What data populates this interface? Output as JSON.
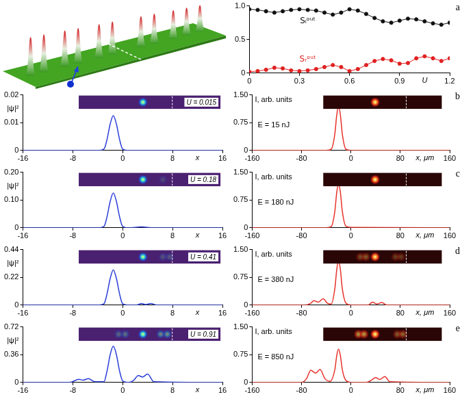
{
  "chart_data": [
    {
      "type": "line",
      "title": "a",
      "x_label": "U",
      "x": [
        0,
        0.05,
        0.1,
        0.15,
        0.2,
        0.25,
        0.3,
        0.35,
        0.4,
        0.45,
        0.5,
        0.55,
        0.6,
        0.65,
        0.7,
        0.75,
        0.8,
        0.85,
        0.9,
        0.95,
        1,
        1.05,
        1.1,
        1.15,
        1.2
      ],
      "series": [
        {
          "name": "Sₗᵒᵘᵗ",
          "color": "#111111",
          "marker": "circle",
          "values": [
            0.95,
            0.94,
            0.92,
            0.9,
            0.92,
            0.94,
            0.95,
            0.94,
            0.93,
            0.9,
            0.87,
            0.9,
            0.95,
            0.93,
            0.88,
            0.82,
            0.77,
            0.75,
            0.78,
            0.81,
            0.8,
            0.77,
            0.74,
            0.72,
            0.75
          ]
        },
        {
          "name": "Sᵣᵒᵘᵗ",
          "color": "#e02020",
          "marker": "circle",
          "values": [
            0.02,
            0.03,
            0.05,
            0.08,
            0.07,
            0.04,
            0.03,
            0.04,
            0.06,
            0.09,
            0.12,
            0.09,
            0.03,
            0.06,
            0.12,
            0.18,
            0.21,
            0.19,
            0.14,
            0.15,
            0.22,
            0.25,
            0.22,
            0.18,
            0.22
          ]
        }
      ],
      "xlim": [
        0,
        1.2
      ],
      "xticks": [
        0,
        0.3,
        0.6,
        0.9,
        1.2
      ],
      "ylim": [
        0,
        1
      ],
      "yticks": [
        0,
        0.5,
        {
          "value": 1,
          "label": "1.0"
        }
      ],
      "grid": false
    },
    {
      "type": "line",
      "x_label": "x",
      "y_label": "|ψ|²",
      "annotations": [
        "U = 0.015"
      ],
      "x": [
        -16,
        -4,
        -3,
        -2.5,
        -2,
        -1.5,
        -1,
        -0.5,
        0,
        1,
        16
      ],
      "series": [
        {
          "color": "#2a3fd8",
          "marker": "none",
          "values": [
            0,
            0,
            0.0005,
            0.004,
            0.0095,
            0.0125,
            0.0095,
            0.004,
            0.0005,
            0,
            0
          ]
        }
      ],
      "xlim": [
        -16,
        16
      ],
      "xticks": [
        -16,
        -8,
        0,
        8,
        16
      ],
      "ylim": [
        0,
        0.02
      ],
      "yticks": [
        0,
        0.01,
        0.02
      ],
      "grid": false
    },
    {
      "type": "line",
      "title": "b",
      "x_label": "x, μm",
      "y_label": "I, arb. units",
      "annotations": [
        "E = 15 nJ"
      ],
      "x": [
        -160,
        -40,
        -32,
        -26,
        -23,
        -20,
        -17,
        -14,
        -8,
        0,
        160
      ],
      "series": [
        {
          "color": "#e8322a",
          "marker": "none",
          "values": [
            0,
            0,
            0.03,
            0.45,
            0.95,
            1.2,
            0.95,
            0.45,
            0.03,
            0,
            0
          ]
        }
      ],
      "xlim": [
        -160,
        160
      ],
      "xticks": [
        -160,
        -80,
        0,
        80,
        160
      ],
      "ylim": [
        0,
        1.5
      ],
      "yticks": [
        0,
        0.75,
        {
          "value": 1.5,
          "label": "1.50"
        }
      ],
      "grid": false
    },
    {
      "type": "line",
      "x_label": "x",
      "y_label": "|ψ|²",
      "annotations": [
        "U = 0.18"
      ],
      "x": [
        -16,
        -4,
        -3,
        -2.5,
        -2,
        -1.5,
        -1,
        -0.5,
        0,
        1,
        3,
        5,
        16
      ],
      "series": [
        {
          "color": "#2a3fd8",
          "marker": "none",
          "values": [
            0,
            0,
            0.005,
            0.04,
            0.095,
            0.125,
            0.095,
            0.04,
            0.005,
            0,
            0.003,
            0,
            0
          ]
        }
      ],
      "xlim": [
        -16,
        16
      ],
      "xticks": [
        -16,
        -8,
        0,
        8,
        16
      ],
      "ylim": [
        0,
        0.2
      ],
      "yticks": [
        0,
        {
          "value": 0.1,
          "label": "0.10"
        },
        {
          "value": 0.2,
          "label": "0.20"
        }
      ],
      "grid": false
    },
    {
      "type": "line",
      "title": "c",
      "x_label": "x, μm",
      "y_label": "I, arb. units",
      "annotations": [
        "E = 180 nJ"
      ],
      "x": [
        -160,
        -40,
        -32,
        -26,
        -23,
        -20,
        -17,
        -14,
        -8,
        0,
        160
      ],
      "series": [
        {
          "color": "#e8322a",
          "marker": "none",
          "values": [
            0,
            0,
            0.03,
            0.45,
            0.95,
            1.18,
            0.95,
            0.45,
            0.04,
            0.01,
            0
          ]
        }
      ],
      "xlim": [
        -160,
        160
      ],
      "xticks": [
        -160,
        -80,
        0,
        80,
        160
      ],
      "ylim": [
        0,
        1.5
      ],
      "yticks": [
        0,
        0.75,
        {
          "value": 1.5,
          "label": "1.50"
        }
      ],
      "grid": false
    },
    {
      "type": "line",
      "x_label": "x",
      "y_label": "|ψ|²",
      "annotations": [
        "U = 0.41"
      ],
      "x": [
        -16,
        -4,
        -3,
        -2.5,
        -2,
        -1.5,
        -1,
        -0.5,
        0,
        1,
        2.2,
        3,
        3.7,
        4.5,
        5.5,
        16
      ],
      "series": [
        {
          "color": "#2a3fd8",
          "marker": "none",
          "values": [
            0,
            0,
            0.01,
            0.09,
            0.21,
            0.28,
            0.21,
            0.09,
            0.01,
            0,
            0,
            0.012,
            0.004,
            0.013,
            0,
            0
          ]
        }
      ],
      "xlim": [
        -16,
        16
      ],
      "xticks": [
        -16,
        -8,
        0,
        8,
        16
      ],
      "ylim": [
        0,
        0.44
      ],
      "yticks": [
        0,
        0.22,
        0.44
      ],
      "grid": false
    },
    {
      "type": "line",
      "title": "d",
      "x_label": "x, μm",
      "y_label": "I, arb. units",
      "annotations": [
        "E = 380 nJ"
      ],
      "x": [
        -160,
        -75,
        -65,
        -60,
        -53,
        -45,
        -38,
        -32,
        -26,
        -23,
        -20,
        -17,
        -14,
        -8,
        0,
        28,
        35,
        42,
        50,
        58,
        160
      ],
      "series": [
        {
          "color": "#e8322a",
          "marker": "none",
          "values": [
            0,
            0,
            0.05,
            0.12,
            0.08,
            0.17,
            0.05,
            0.03,
            0.45,
            0.95,
            1.2,
            0.95,
            0.45,
            0.05,
            0,
            0,
            0.08,
            0.03,
            0.07,
            0,
            0
          ]
        }
      ],
      "xlim": [
        -160,
        160
      ],
      "xticks": [
        -160,
        -80,
        0,
        80,
        160
      ],
      "ylim": [
        0,
        1.5
      ],
      "yticks": [
        0,
        0.75,
        {
          "value": 1.5,
          "label": "1.50"
        }
      ],
      "grid": false
    },
    {
      "type": "line",
      "x_label": "x",
      "y_label": "|ψ|²",
      "annotations": [
        "U = 0.91"
      ],
      "x": [
        -16,
        -8.5,
        -7,
        -6.3,
        -5.5,
        -4.5,
        -3,
        -2.5,
        -2,
        -1.5,
        -1,
        -0.5,
        0,
        1,
        1.8,
        2.5,
        3.2,
        4,
        5,
        16
      ],
      "series": [
        {
          "color": "#2a3fd8",
          "marker": "none",
          "values": [
            0,
            0,
            0.04,
            0.03,
            0.05,
            0.01,
            0.01,
            0.15,
            0.36,
            0.47,
            0.36,
            0.15,
            0.02,
            0,
            0.03,
            0.09,
            0.07,
            0.11,
            0.01,
            0
          ]
        }
      ],
      "xlim": [
        -16,
        16
      ],
      "xticks": [
        -16,
        -8,
        0,
        8,
        16
      ],
      "ylim": [
        0,
        0.72
      ],
      "yticks": [
        0,
        0.36,
        0.72
      ],
      "grid": false
    },
    {
      "type": "line",
      "title": "e",
      "x_label": "x, μm",
      "y_label": "I, arb. units",
      "annotations": [
        "E = 850 nJ"
      ],
      "x": [
        -160,
        -80,
        -72,
        -65,
        -57,
        -50,
        -42,
        -34,
        -26,
        -23,
        -20,
        -17,
        -14,
        -8,
        0,
        25,
        33,
        40,
        47,
        55,
        63,
        160
      ],
      "series": [
        {
          "color": "#e8322a",
          "marker": "none",
          "values": [
            0,
            0,
            0.1,
            0.33,
            0.25,
            0.35,
            0.1,
            0.03,
            0.35,
            0.72,
            0.9,
            0.72,
            0.35,
            0.05,
            0,
            0,
            0.06,
            0.13,
            0.08,
            0.16,
            0.02,
            0
          ]
        }
      ],
      "xlim": [
        -160,
        160
      ],
      "xticks": [
        -160,
        -80,
        0,
        80,
        160
      ],
      "ylim": [
        0,
        1.5
      ],
      "yticks": [
        0,
        0.75,
        {
          "value": 1.5,
          "label": "1.50"
        }
      ],
      "grid": false
    }
  ]
}
